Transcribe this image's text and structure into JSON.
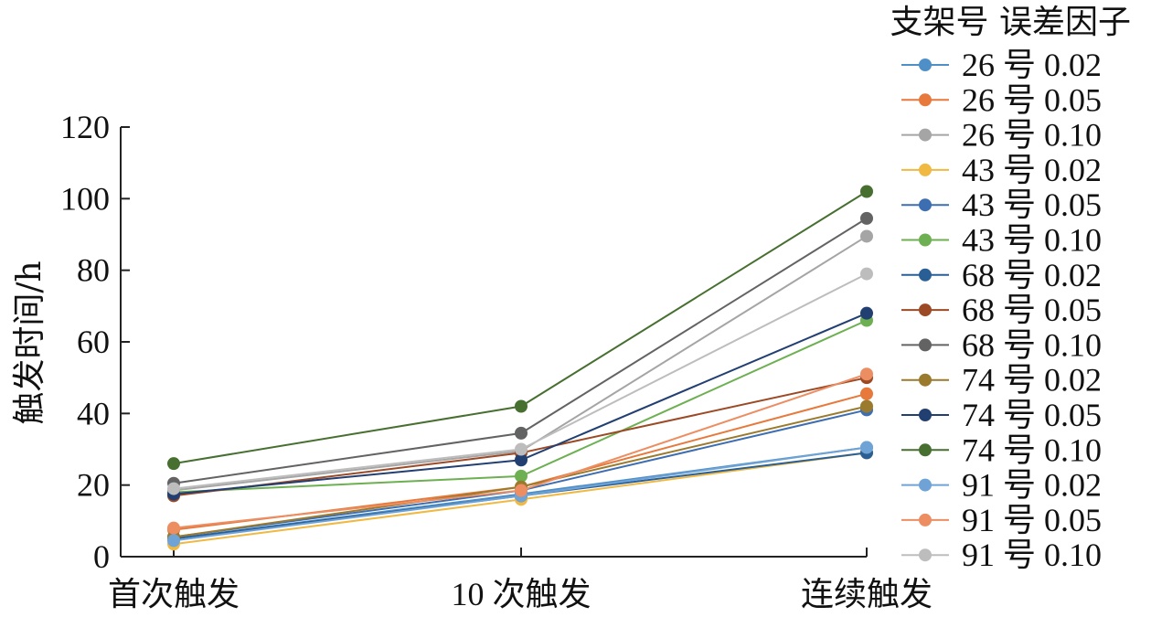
{
  "chart_data": {
    "type": "line",
    "title": "",
    "xlabel": "",
    "ylabel": "触发时间/h",
    "categories": [
      "首次触发",
      "10 次触发",
      "连续触发"
    ],
    "ylim": [
      0,
      120
    ],
    "yticks": [
      0,
      20,
      40,
      60,
      80,
      100,
      120
    ],
    "grid": false,
    "legend_title": "支架号 误差因子",
    "legend_position": "right",
    "series": [
      {
        "name": "26 号 0.02",
        "color": "#4f8fc8",
        "values": [
          5,
          17.5,
          30.5
        ]
      },
      {
        "name": "26 号 0.05",
        "color": "#e6793b",
        "values": [
          7.5,
          19.5,
          45.5
        ]
      },
      {
        "name": "26 号 0.10",
        "color": "#a5a5a5",
        "values": [
          18.5,
          29.5,
          89.5
        ]
      },
      {
        "name": "43 号 0.02",
        "color": "#f0b942",
        "values": [
          3.5,
          16,
          29
        ]
      },
      {
        "name": "43 号 0.05",
        "color": "#3d6eb1",
        "values": [
          5.5,
          18.5,
          41
        ]
      },
      {
        "name": "43 号 0.10",
        "color": "#6db052",
        "values": [
          18,
          22.5,
          66
        ]
      },
      {
        "name": "68 号 0.02",
        "color": "#2a5f96",
        "values": [
          5,
          17,
          29
        ]
      },
      {
        "name": "68 号 0.05",
        "color": "#9c4a25",
        "values": [
          17,
          29,
          50
        ]
      },
      {
        "name": "68 号 0.10",
        "color": "#636363",
        "values": [
          20.5,
          34.5,
          94.5
        ]
      },
      {
        "name": "74 号 0.02",
        "color": "#9a7a2c",
        "values": [
          5.5,
          19.5,
          42
        ]
      },
      {
        "name": "74 号 0.05",
        "color": "#223f72",
        "values": [
          17.5,
          27,
          68
        ]
      },
      {
        "name": "74 号 0.10",
        "color": "#466f30",
        "values": [
          26,
          42,
          102
        ]
      },
      {
        "name": "91 号 0.02",
        "color": "#6fa3d6",
        "values": [
          4.5,
          17,
          30.5
        ]
      },
      {
        "name": "91 号 0.05",
        "color": "#ec8d62",
        "values": [
          8,
          18.5,
          51
        ]
      },
      {
        "name": "91 号 0.10",
        "color": "#bdbdbd",
        "values": [
          19,
          30,
          79
        ]
      }
    ]
  }
}
